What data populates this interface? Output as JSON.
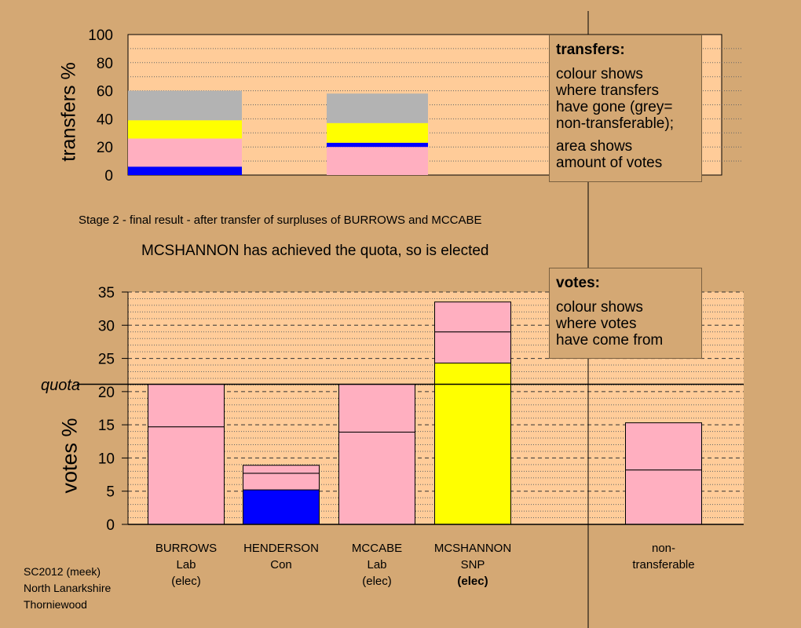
{
  "chart_data": [
    {
      "type": "bar",
      "stacked": true,
      "ylabel": "transfers %",
      "ylim": [
        0,
        100
      ],
      "yticks": [
        0,
        20,
        40,
        60,
        80,
        100
      ],
      "bars": [
        {
          "segments": [
            {
              "value": 6,
              "color": "#0000ff"
            },
            {
              "value": 20,
              "color": "#ffafc0"
            },
            {
              "value": 13,
              "color": "#ffff00"
            },
            {
              "value": 21,
              "color": "#b3b3b3"
            }
          ]
        },
        {
          "segments": [
            {
              "value": 20,
              "color": "#ffafc0"
            },
            {
              "value": 3,
              "color": "#0000ff"
            },
            {
              "value": 14,
              "color": "#ffff00"
            },
            {
              "value": 21,
              "color": "#b3b3b3"
            }
          ]
        }
      ]
    },
    {
      "type": "bar",
      "stacked": true,
      "ylabel": "votes %",
      "ylim": [
        0,
        35
      ],
      "yticks": [
        0,
        5,
        10,
        15,
        20,
        25,
        30,
        35
      ],
      "quota": 21.1,
      "categories": [
        {
          "lines": [
            "BURROWS",
            "Lab",
            "(elec)"
          ],
          "segments": [
            {
              "value": 14.7,
              "color": "#ffafc0"
            },
            {
              "value": 6.4,
              "color": "#ffafc0"
            }
          ]
        },
        {
          "lines": [
            "HENDERSON",
            "Con"
          ],
          "segments": [
            {
              "value": 5.2,
              "color": "#0000ff"
            },
            {
              "value": 2.5,
              "color": "#ffafc0"
            },
            {
              "value": 1.2,
              "color": "#ffafc0"
            }
          ]
        },
        {
          "lines": [
            "MCCABE",
            "Lab",
            "(elec)"
          ],
          "segments": [
            {
              "value": 13.9,
              "color": "#ffafc0"
            },
            {
              "value": 7.2,
              "color": "#ffafc0"
            }
          ]
        },
        {
          "lines": [
            "MCSHANNON",
            "SNP",
            "(elec)"
          ],
          "bold_last": true,
          "segments": [
            {
              "value": 24.3,
              "color": "#ffff00"
            },
            {
              "value": 4.7,
              "color": "#ffafc0"
            },
            {
              "value": 4.5,
              "color": "#ffafc0"
            }
          ]
        },
        {
          "lines": [
            "non-",
            "transferable"
          ],
          "segments": [
            {
              "value": 8.2,
              "color": "#ffafc0"
            },
            {
              "value": 7.1,
              "color": "#ffafc0"
            }
          ]
        }
      ]
    }
  ],
  "stage_text": "Stage 2 - final result - after transfer of surpluses of BURROWS and MCCABE",
  "status_text": "MCSHANNON has achieved the quota, so is elected",
  "quota_label": "quota",
  "transfers_box": {
    "title": "transfers:",
    "line1": "colour shows",
    "line2": "where transfers",
    "line3": "have gone (grey=",
    "line4": "non-transferable);",
    "line5": "area shows",
    "line6": "amount of votes"
  },
  "votes_box": {
    "title": "votes:",
    "line1": "colour shows",
    "line2": "where votes",
    "line3": "have come from"
  },
  "footer": {
    "line1": "SC2012 (meek)",
    "line2": "North Lanarkshire",
    "line3": "Thorniewood"
  },
  "colors": {
    "background": "#d4a874",
    "plot_background": "#ffcc99",
    "pink": "#ffafc0",
    "yellow": "#ffff00",
    "blue": "#0000ff",
    "grey": "#b3b3b3"
  }
}
